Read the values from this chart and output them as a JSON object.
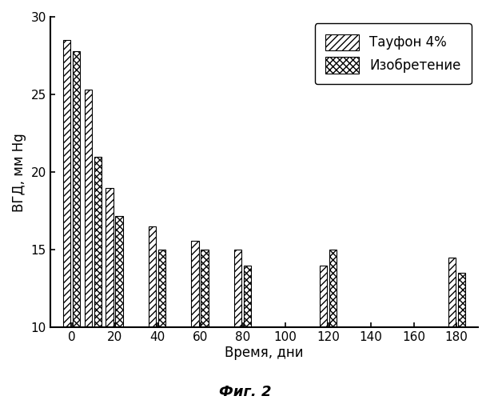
{
  "title": "Фиг. 2",
  "ylabel": "ВГД, мм Hg",
  "xlabel": "Время, дни",
  "ylim": [
    10,
    30
  ],
  "yticks": [
    10,
    15,
    20,
    25,
    30
  ],
  "xtick_positions": [
    0,
    20,
    40,
    60,
    80,
    100,
    120,
    140,
    160,
    180
  ],
  "groups": [
    {
      "x": 0,
      "taufon": 28.5,
      "invention": 27.8
    },
    {
      "x": 10,
      "taufon": 25.3,
      "invention": 21.0
    },
    {
      "x": 20,
      "taufon": 19.0,
      "invention": 17.2
    },
    {
      "x": 40,
      "taufon": 16.5,
      "invention": 15.0
    },
    {
      "x": 60,
      "taufon": 15.6,
      "invention": 15.0
    },
    {
      "x": 80,
      "taufon": 15.0,
      "invention": 14.0
    },
    {
      "x": 120,
      "taufon": 14.0,
      "invention": 15.0
    },
    {
      "x": 180,
      "taufon": 14.5,
      "invention": 13.5
    }
  ],
  "bar_width": 3.5,
  "bar_gap": 1.0,
  "legend_labels": [
    "Тауфон 4%",
    "Изобретение"
  ],
  "hatch_taufon": "////",
  "hatch_invention": "xxxx",
  "facecolor": "white",
  "edgecolor": "black",
  "title_fontsize": 13,
  "label_fontsize": 12,
  "tick_fontsize": 11,
  "legend_fontsize": 12
}
